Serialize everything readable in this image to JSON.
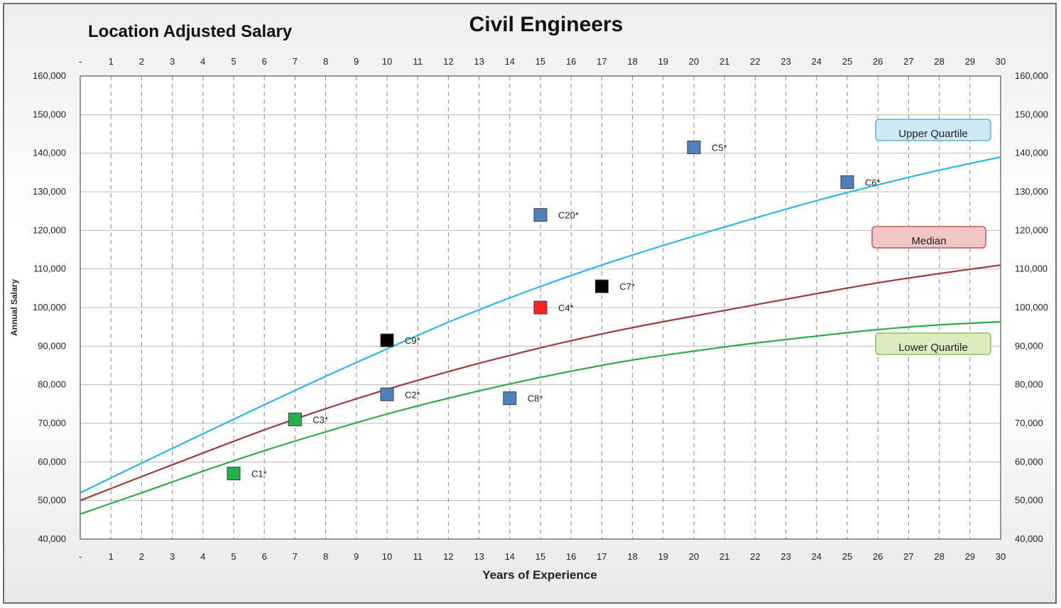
{
  "chart_data": {
    "type": "scatter",
    "title": "Civil Engineers",
    "subtitle": "Location Adjusted Salary",
    "xlabel": "Years of Experience",
    "ylabel": "Annual Salary",
    "xlim": [
      0,
      30
    ],
    "ylim": [
      40000,
      160000
    ],
    "x_ticks": [
      "-",
      "1",
      "2",
      "3",
      "4",
      "5",
      "6",
      "7",
      "8",
      "9",
      "10",
      "11",
      "12",
      "13",
      "14",
      "15",
      "16",
      "17",
      "18",
      "19",
      "20",
      "21",
      "22",
      "23",
      "24",
      "25",
      "26",
      "27",
      "28",
      "29",
      "30"
    ],
    "y_ticks": [
      "40,000",
      "50,000",
      "60,000",
      "70,000",
      "80,000",
      "90,000",
      "100,000",
      "110,000",
      "120,000",
      "130,000",
      "140,000",
      "150,000",
      "160,000"
    ],
    "y_tick_values": [
      40000,
      50000,
      60000,
      70000,
      80000,
      90000,
      100000,
      110000,
      120000,
      130000,
      140000,
      150000,
      160000
    ],
    "grid": true,
    "series": [
      {
        "name": "Upper Quartile",
        "color": "#29b6e8",
        "x": [
          0,
          2,
          4,
          6,
          8,
          10,
          12,
          14,
          16,
          18,
          20,
          22,
          24,
          26,
          28,
          30
        ],
        "y": [
          52000,
          59700,
          67300,
          74800,
          82200,
          89300,
          96200,
          102500,
          108300,
          113600,
          118500,
          123200,
          127700,
          131800,
          135600,
          139000
        ]
      },
      {
        "name": "Median",
        "color": "#9b3b3b",
        "x": [
          0,
          2,
          4,
          6,
          8,
          10,
          12,
          14,
          16,
          18,
          20,
          22,
          24,
          26,
          28,
          30
        ],
        "y": [
          50000,
          56200,
          62300,
          68300,
          73800,
          78800,
          83400,
          87600,
          91400,
          94800,
          97800,
          100700,
          103600,
          106400,
          108800,
          111000
        ]
      },
      {
        "name": "Lower Quartile",
        "color": "#2eaa4a",
        "x": [
          0,
          2,
          4,
          6,
          8,
          10,
          12,
          14,
          16,
          18,
          20,
          22,
          24,
          26,
          28,
          30
        ],
        "y": [
          46500,
          52000,
          57600,
          62900,
          67800,
          72400,
          76500,
          80200,
          83500,
          86400,
          88700,
          90800,
          92600,
          94300,
          95500,
          96300
        ]
      }
    ],
    "points": [
      {
        "label": "C1*",
        "x": 5,
        "y": 57000,
        "color": "#22b14c"
      },
      {
        "label": "C3*",
        "x": 7,
        "y": 71000,
        "color": "#22b14c"
      },
      {
        "label": "C2*",
        "x": 10,
        "y": 77500,
        "color": "#4f81bd"
      },
      {
        "label": "C9*",
        "x": 10,
        "y": 91500,
        "color": "#000000"
      },
      {
        "label": "C8*",
        "x": 14,
        "y": 76500,
        "color": "#4f81bd"
      },
      {
        "label": "C4*",
        "x": 15,
        "y": 100000,
        "color": "#ff2020"
      },
      {
        "label": "C20*",
        "x": 15,
        "y": 124000,
        "color": "#4f81bd"
      },
      {
        "label": "C7*",
        "x": 17,
        "y": 105500,
        "color": "#000000"
      },
      {
        "label": "C5*",
        "x": 20,
        "y": 141500,
        "color": "#4f81bd"
      },
      {
        "label": "C6*",
        "x": 25,
        "y": 132500,
        "color": "#4f81bd"
      }
    ],
    "legend": [
      {
        "label": "Upper Quartile",
        "fill": "#cde9f4",
        "stroke": "#5fb3d3"
      },
      {
        "label": "Median",
        "fill": "#f1c6c6",
        "stroke": "#c8555a"
      },
      {
        "label": "Lower Quartile",
        "fill": "#dcecc0",
        "stroke": "#8fbf5a"
      }
    ]
  }
}
